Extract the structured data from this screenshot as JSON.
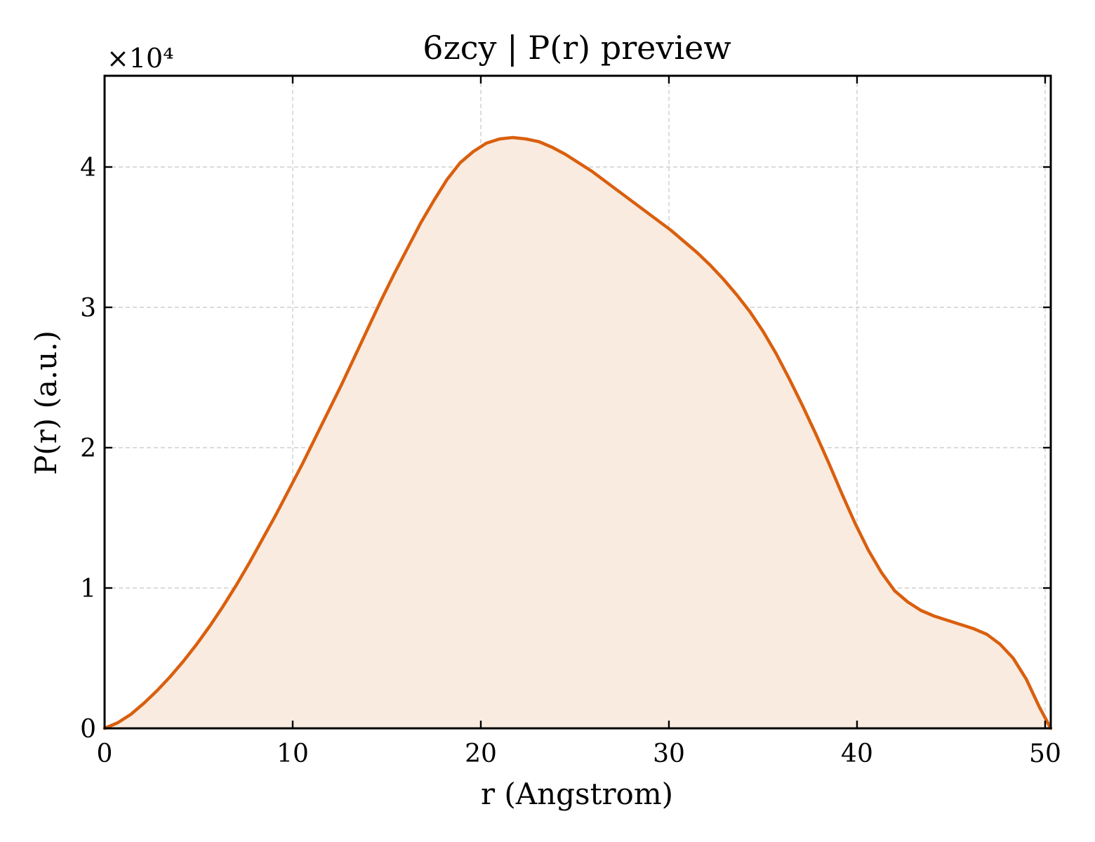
{
  "chart_data": {
    "type": "area",
    "title": "6zcy | P(r) preview",
    "xlabel": "r (Angstrom)",
    "ylabel": "P(r) (a.u.)",
    "y_multiplier_label": "×10⁴",
    "y_scale_factor": 10000,
    "xlim": [
      0,
      50.3
    ],
    "ylim": [
      0,
      4.65
    ],
    "grid": true,
    "legend": "none",
    "x_ticks": [
      0,
      10,
      20,
      30,
      40,
      50
    ],
    "x_tick_labels": [
      "0",
      "10",
      "20",
      "30",
      "40",
      "50"
    ],
    "y_ticks": [
      0,
      1,
      2,
      3,
      4
    ],
    "y_tick_labels": [
      "0",
      "1",
      "2",
      "3",
      "4"
    ],
    "colors": {
      "line": "#d95f0e",
      "fill": "#f9ebe0"
    },
    "series": [
      {
        "x": [
          0,
          0.7,
          1.4,
          2.1,
          2.8,
          3.5,
          4.2,
          4.9,
          5.6,
          6.3,
          7.0,
          7.7,
          8.4,
          9.1,
          9.8,
          10.5,
          11.2,
          11.9,
          12.6,
          13.3,
          14.0,
          14.7,
          15.4,
          16.1,
          16.8,
          17.5,
          18.2,
          18.9,
          19.6,
          20.3,
          21.0,
          21.7,
          22.4,
          23.1,
          23.8,
          24.5,
          25.2,
          25.9,
          26.6,
          27.3,
          28.0,
          28.7,
          29.4,
          30.1,
          30.8,
          31.5,
          32.2,
          32.9,
          33.6,
          34.3,
          35.0,
          35.7,
          36.4,
          37.1,
          37.8,
          38.5,
          39.2,
          39.9,
          40.6,
          41.3,
          42.0,
          42.7,
          43.4,
          44.1,
          44.8,
          45.5,
          46.2,
          46.9,
          47.6,
          48.3,
          49.0,
          49.7,
          50.3
        ],
        "y": [
          0,
          0.04,
          0.1,
          0.18,
          0.27,
          0.37,
          0.48,
          0.6,
          0.73,
          0.87,
          1.02,
          1.18,
          1.35,
          1.52,
          1.7,
          1.88,
          2.07,
          2.26,
          2.45,
          2.65,
          2.85,
          3.05,
          3.24,
          3.42,
          3.6,
          3.76,
          3.91,
          4.03,
          4.11,
          4.17,
          4.2,
          4.21,
          4.2,
          4.18,
          4.14,
          4.09,
          4.03,
          3.97,
          3.9,
          3.83,
          3.76,
          3.69,
          3.62,
          3.55,
          3.47,
          3.39,
          3.3,
          3.2,
          3.09,
          2.97,
          2.83,
          2.67,
          2.49,
          2.3,
          2.1,
          1.89,
          1.67,
          1.46,
          1.27,
          1.11,
          0.98,
          0.9,
          0.84,
          0.8,
          0.77,
          0.74,
          0.71,
          0.67,
          0.6,
          0.5,
          0.35,
          0.15,
          0.0
        ]
      }
    ]
  }
}
